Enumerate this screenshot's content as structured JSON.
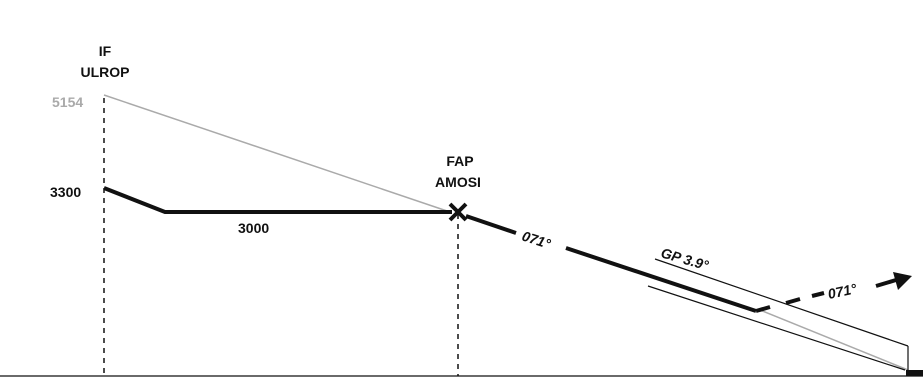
{
  "fixes": {
    "if_role": "IF",
    "if_name": "ULROP",
    "fap_role": "FAP",
    "fap_name": "AMOSI"
  },
  "altitudes": {
    "msa_at_if": "5154",
    "if_altitude": "3300",
    "segment_altitude": "3000"
  },
  "tracks": {
    "final_track": "071°",
    "missed_track": "071°"
  },
  "glidepath": {
    "label": "GP 3.9°"
  },
  "colors": {
    "ink": "#111111",
    "msa_line": "#aaaaaa"
  }
}
